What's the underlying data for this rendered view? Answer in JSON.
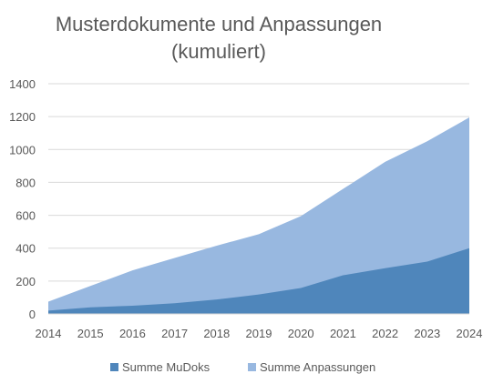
{
  "chart_data": {
    "type": "area",
    "title_line1": "Musterdokumente und Anpassungen",
    "title_line2": "(kumuliert)",
    "x": [
      "2014",
      "2015",
      "2016",
      "2017",
      "2018",
      "2019",
      "2020",
      "2021",
      "2022",
      "2023",
      "2024"
    ],
    "series": [
      {
        "name": "Summe MuDoks",
        "color": "#4f86bb",
        "values": [
          20,
          40,
          50,
          65,
          88,
          118,
          158,
          235,
          278,
          318,
          400
        ]
      },
      {
        "name": "Summe Anpassungen",
        "color": "#98b8e0",
        "values": [
          75,
          170,
          265,
          340,
          415,
          485,
          595,
          760,
          925,
          1050,
          1195
        ]
      }
    ],
    "stacked": false,
    "ylim": [
      0,
      1400
    ],
    "yticks": [
      0,
      200,
      400,
      600,
      800,
      1000,
      1200,
      1400
    ],
    "grid": true,
    "legend": "bottom"
  }
}
